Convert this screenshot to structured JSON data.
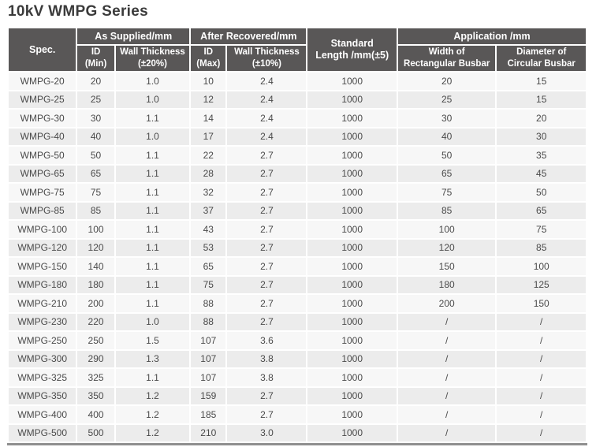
{
  "page_title": "10kV WMPG Series",
  "table": {
    "header": {
      "spec": "Spec.",
      "as_supplied": "As Supplied/mm",
      "after_recovered": "After Recovered/mm",
      "standard_length": "Standard\nLength /mm(±5)",
      "application": "Application /mm",
      "id_min": "ID\n(Min)",
      "wall_thickness_20": "Wall Thickness\n(±20%)",
      "id_max": "ID\n(Max)",
      "wall_thickness_10": "Wall Thickness\n(±10%)",
      "width_rect_busbar": "Width of\nRectangular Busbar",
      "dia_circ_busbar": "Diameter of\nCircular Busbar"
    },
    "columns": [
      "Spec.",
      "ID (Min)",
      "Wall Thickness (±20%)",
      "ID (Max)",
      "Wall Thickness (±10%)",
      "Standard Length /mm(±5)",
      "Width of Rectangular Busbar",
      "Diameter of Circular Busbar"
    ],
    "rows": [
      [
        "WMPG-20",
        "20",
        "1.0",
        "10",
        "2.4",
        "1000",
        "20",
        "15"
      ],
      [
        "WMPG-25",
        "25",
        "1.0",
        "12",
        "2.4",
        "1000",
        "25",
        "15"
      ],
      [
        "WMPG-30",
        "30",
        "1.1",
        "14",
        "2.4",
        "1000",
        "30",
        "20"
      ],
      [
        "WMPG-40",
        "40",
        "1.0",
        "17",
        "2.4",
        "1000",
        "40",
        "30"
      ],
      [
        "WMPG-50",
        "50",
        "1.1",
        "22",
        "2.7",
        "1000",
        "50",
        "35"
      ],
      [
        "WMPG-65",
        "65",
        "1.1",
        "28",
        "2.7",
        "1000",
        "65",
        "45"
      ],
      [
        "WMPG-75",
        "75",
        "1.1",
        "32",
        "2.7",
        "1000",
        "75",
        "50"
      ],
      [
        "WMPG-85",
        "85",
        "1.1",
        "37",
        "2.7",
        "1000",
        "85",
        "65"
      ],
      [
        "WMPG-100",
        "100",
        "1.1",
        "43",
        "2.7",
        "1000",
        "100",
        "75"
      ],
      [
        "WMPG-120",
        "120",
        "1.1",
        "53",
        "2.7",
        "1000",
        "120",
        "85"
      ],
      [
        "WMPG-150",
        "140",
        "1.1",
        "65",
        "2.7",
        "1000",
        "150",
        "100"
      ],
      [
        "WMPG-180",
        "180",
        "1.1",
        "75",
        "2.7",
        "1000",
        "180",
        "125"
      ],
      [
        "WMPG-210",
        "200",
        "1.1",
        "88",
        "2.7",
        "1000",
        "200",
        "150"
      ],
      [
        "WMPG-230",
        "220",
        "1.0",
        "88",
        "2.7",
        "1000",
        "/",
        "/"
      ],
      [
        "WMPG-250",
        "250",
        "1.5",
        "107",
        "3.6",
        "1000",
        "/",
        "/"
      ],
      [
        "WMPG-300",
        "290",
        "1.3",
        "107",
        "3.8",
        "1000",
        "/",
        "/"
      ],
      [
        "WMPG-325",
        "325",
        "1.1",
        "107",
        "3.8",
        "1000",
        "/",
        "/"
      ],
      [
        "WMPG-350",
        "350",
        "1.2",
        "159",
        "2.7",
        "1000",
        "/",
        "/"
      ],
      [
        "WMPG-400",
        "400",
        "1.2",
        "185",
        "2.7",
        "1000",
        "/",
        "/"
      ],
      [
        "WMPG-500",
        "500",
        "1.2",
        "210",
        "3.0",
        "1000",
        "/",
        "/"
      ]
    ],
    "colors": {
      "header_bg": "#595757",
      "header_text": "#ffffff",
      "row_odd_bg": "#f7f7f7",
      "row_even_bg": "#ececec",
      "body_text": "#4a4a4a",
      "bottom_border": "#8f8f8f",
      "title_text": "#3b3b3b"
    }
  }
}
